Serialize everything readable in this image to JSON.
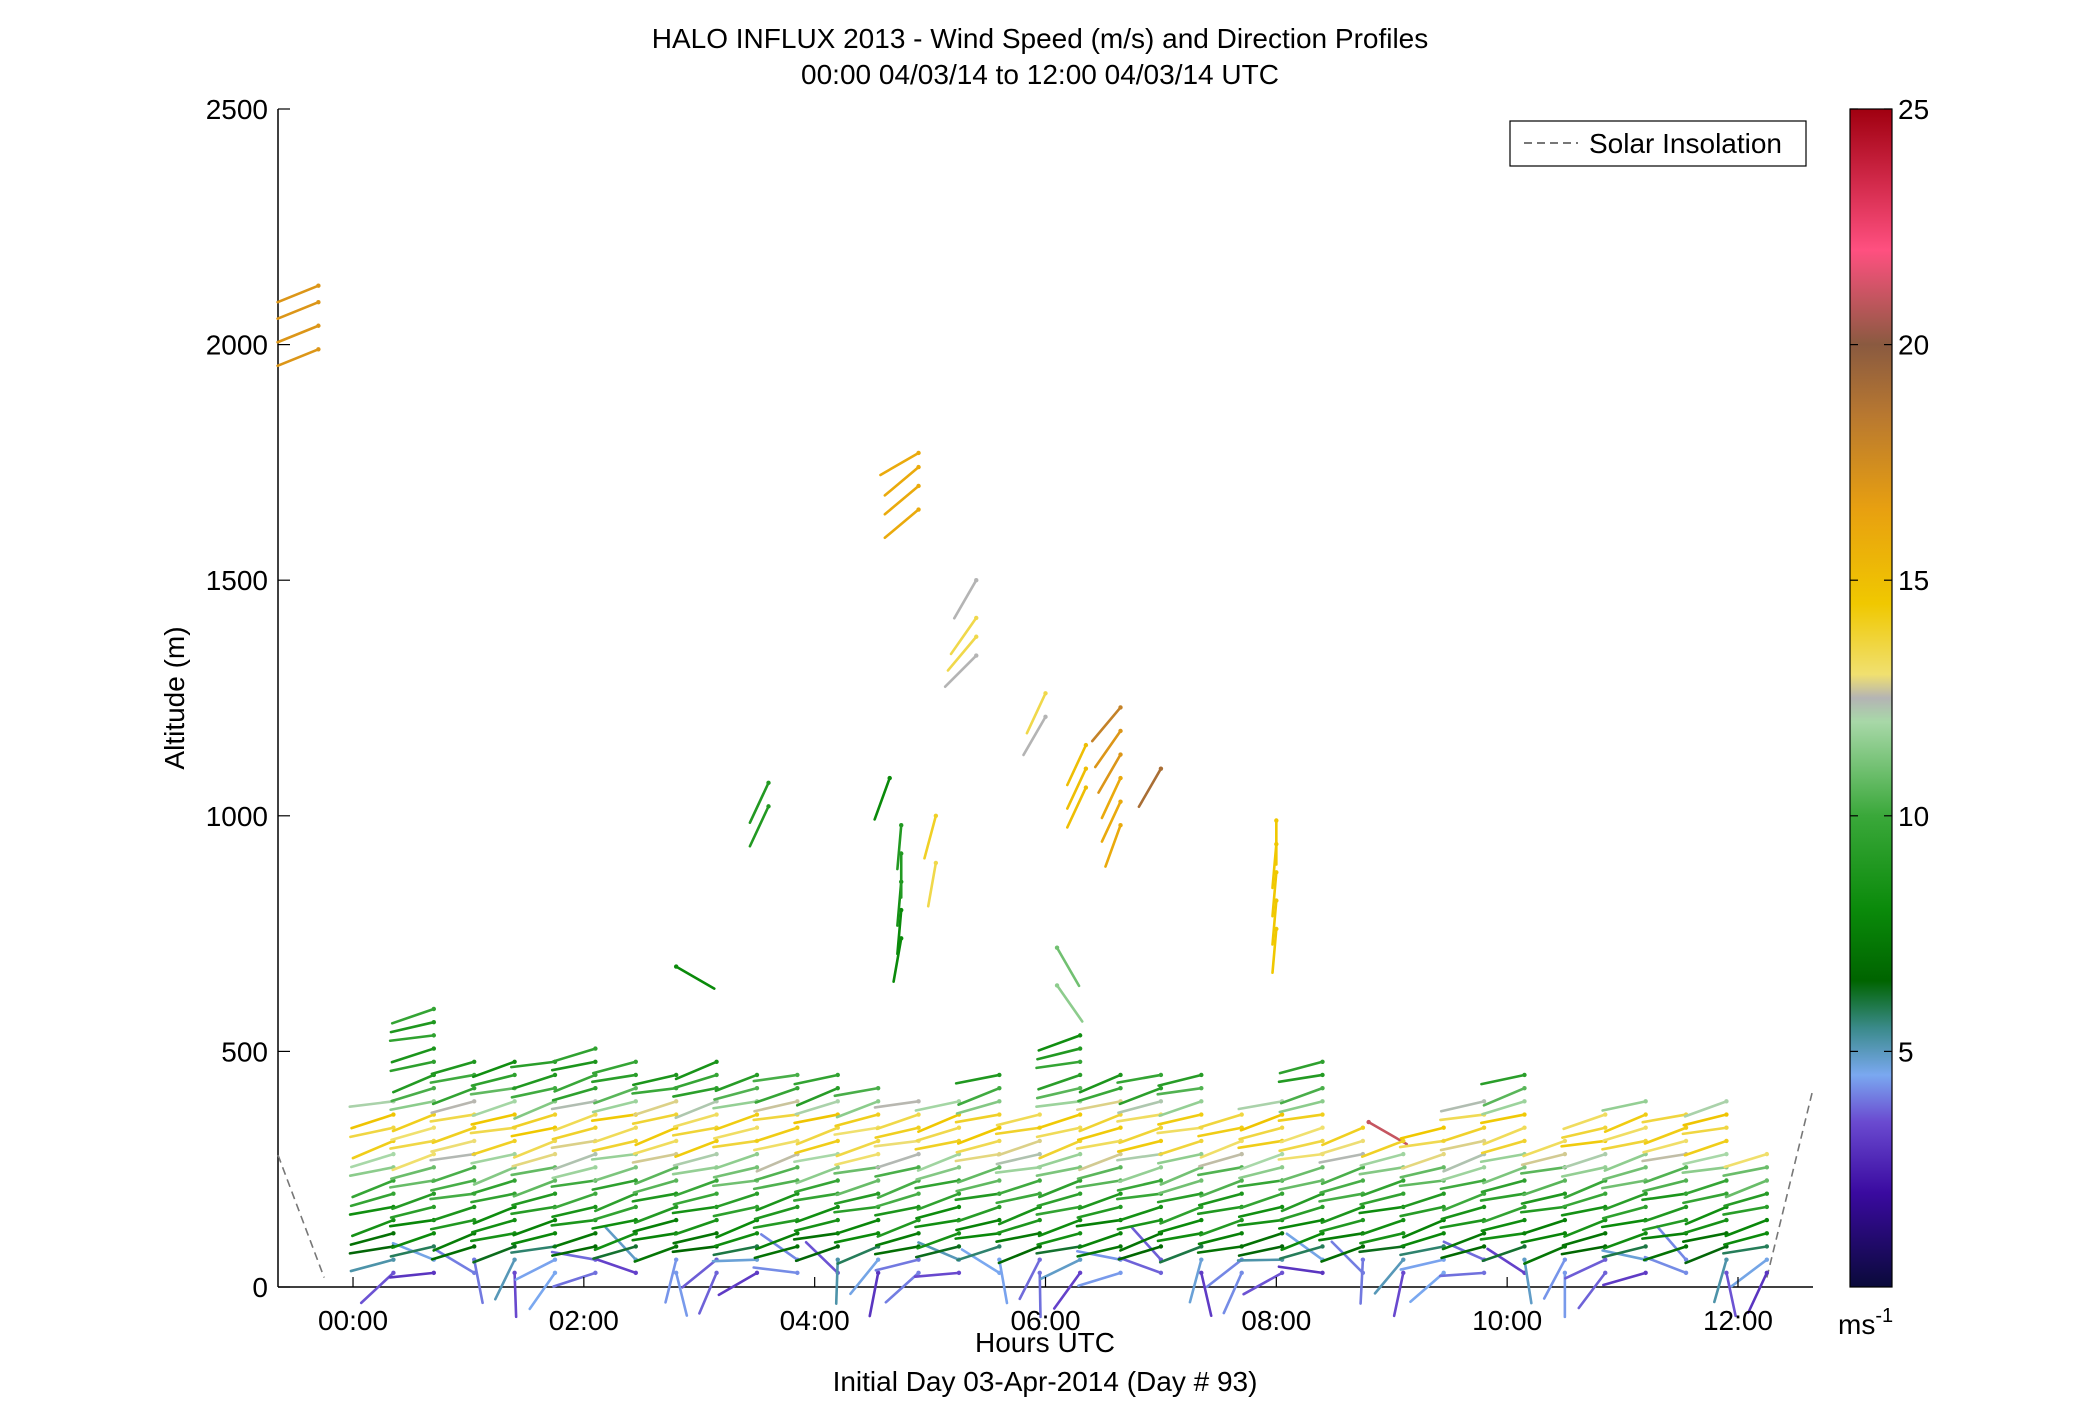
{
  "chart_data": {
    "type": "scatter",
    "title": "HALO INFLUX 2013 - Wind Speed (m/s) and Direction Profiles",
    "subtitle": "00:00 04/03/14 to 12:00 04/03/14  UTC",
    "xlabel": "Hours UTC",
    "xlabel2": "Initial Day 03-Apr-2014 (Day # 93)",
    "ylabel": "Altitude (m)",
    "xlim": [
      -0.65,
      12.65
    ],
    "ylim": [
      0,
      2500
    ],
    "x_ticks": [
      0,
      2,
      4,
      6,
      8,
      10,
      12
    ],
    "x_tick_labels": [
      "00:00",
      "02:00",
      "04:00",
      "06:00",
      "08:00",
      "10:00",
      "12:00"
    ],
    "y_ticks": [
      0,
      500,
      1000,
      1500,
      2000,
      2500
    ],
    "y_tick_labels": [
      "0",
      "500",
      "1000",
      "1500",
      "2000",
      "2500"
    ],
    "legend": {
      "entries": [
        "Solar Insolation"
      ],
      "placement": "top-right"
    },
    "colorbar": {
      "min": 0,
      "max": 25,
      "ticks": [
        5,
        10,
        15,
        20,
        25
      ],
      "tick_labels": [
        "5",
        "10",
        "15",
        "20",
        "25"
      ],
      "unit_label": "ms",
      "unit_sup": "-1",
      "stops": [
        [
          0,
          "#0a0a3a"
        ],
        [
          2,
          "#3a0aa0"
        ],
        [
          3.5,
          "#6a4ad0"
        ],
        [
          4.5,
          "#7aa8f0"
        ],
        [
          5.5,
          "#3a8a8a"
        ],
        [
          6.5,
          "#006400"
        ],
        [
          8,
          "#0a8a0a"
        ],
        [
          10,
          "#3aa83a"
        ],
        [
          12,
          "#a8d8a8"
        ],
        [
          12.5,
          "#b4b4b4"
        ],
        [
          13,
          "#f0e070"
        ],
        [
          14.5,
          "#f0c800"
        ],
        [
          16.5,
          "#e8a010"
        ],
        [
          18.5,
          "#b87830"
        ],
        [
          20,
          "#8a5a40"
        ],
        [
          22,
          "#ff5080"
        ],
        [
          25,
          "#a00010"
        ]
      ]
    },
    "solar_insolation": {
      "segments": [
        [
          [
            -0.65,
            280
          ],
          [
            -0.25,
            20
          ]
        ],
        [
          [
            12.25,
            20
          ],
          [
            12.65,
            420
          ]
        ]
      ]
    },
    "wind_barbs": {
      "description_fields": [
        "hour",
        "altitude_m",
        "speed_ms",
        "direction_deg"
      ],
      "points": [
        [
          -0.3,
          1990,
          17,
          248
        ],
        [
          -0.3,
          2040,
          17,
          248
        ],
        [
          -0.3,
          2090,
          17,
          248
        ],
        [
          -0.3,
          2125,
          17,
          248
        ],
        [
          4.9,
          1650,
          16,
          230
        ],
        [
          4.9,
          1700,
          16,
          230
        ],
        [
          4.9,
          1740,
          16,
          230
        ],
        [
          4.9,
          1770,
          16,
          240
        ],
        [
          5.4,
          1340,
          12.5,
          225
        ],
        [
          5.4,
          1380,
          13.5,
          220
        ],
        [
          5.4,
          1420,
          13.5,
          215
        ],
        [
          5.4,
          1500,
          12.5,
          210
        ],
        [
          6.0,
          1210,
          12.5,
          210
        ],
        [
          6.0,
          1260,
          13.5,
          205
        ],
        [
          6.35,
          1060,
          15,
          205
        ],
        [
          6.35,
          1100,
          15,
          205
        ],
        [
          6.35,
          1150,
          15,
          205
        ],
        [
          6.65,
          980,
          16,
          200
        ],
        [
          6.65,
          1030,
          16,
          205
        ],
        [
          6.65,
          1080,
          16,
          205
        ],
        [
          6.65,
          1130,
          17,
          210
        ],
        [
          6.65,
          1180,
          17,
          215
        ],
        [
          6.65,
          1230,
          18,
          220
        ],
        [
          7.0,
          1100,
          19,
          210
        ],
        [
          3.6,
          1020,
          9,
          205
        ],
        [
          3.6,
          1070,
          9,
          205
        ],
        [
          4.65,
          1080,
          8,
          200
        ],
        [
          4.75,
          740,
          8,
          190
        ],
        [
          4.75,
          800,
          8,
          185
        ],
        [
          4.75,
          860,
          8.5,
          185
        ],
        [
          4.75,
          920,
          9,
          180
        ],
        [
          4.75,
          980,
          9,
          185
        ],
        [
          5.05,
          900,
          13.5,
          190
        ],
        [
          5.05,
          1000,
          14,
          195
        ],
        [
          2.8,
          680,
          8,
          120
        ],
        [
          8.0,
          760,
          14.5,
          185
        ],
        [
          8.0,
          820,
          14.5,
          185
        ],
        [
          8.0,
          880,
          14.5,
          185
        ],
        [
          8.0,
          940,
          14.5,
          185
        ],
        [
          8.0,
          990,
          14.5,
          180
        ],
        [
          6.1,
          720,
          11,
          150
        ],
        [
          6.1,
          640,
          11.5,
          145
        ],
        [
          8.8,
          350,
          21,
          120
        ]
      ]
    },
    "wind_field": {
      "description": "Dense lower-atmosphere barb field",
      "hours": [
        0.1,
        0.35,
        0.7,
        1.05,
        1.4,
        1.75,
        2.1,
        2.45,
        2.8,
        3.15,
        3.5,
        3.85,
        4.2,
        4.55,
        4.9,
        5.25,
        5.6,
        5.95,
        6.3,
        6.65,
        7.0,
        7.35,
        7.7,
        8.05,
        8.4,
        8.75,
        9.1,
        9.45,
        9.8,
        10.15,
        10.5,
        10.85,
        11.2,
        11.55,
        11.9,
        12.25
      ],
      "tops_m": [
        0,
        400,
        590,
        480,
        490,
        490,
        520,
        500,
        470,
        490,
        460,
        470,
        470,
        430,
        410,
        400,
        460,
        380,
        560,
        450,
        470,
        460,
        380,
        420,
        490,
        340,
        330,
        340,
        420,
        460,
        330,
        370,
        410,
        390,
        400,
        300
      ],
      "level_step_m": 28,
      "speed_by_altitude": [
        [
          0,
          3
        ],
        [
          60,
          4.5
        ],
        [
          100,
          7.5
        ],
        [
          200,
          9.5
        ],
        [
          270,
          11.5
        ],
        [
          300,
          13.5
        ],
        [
          370,
          14
        ],
        [
          420,
          10
        ],
        [
          480,
          9
        ]
      ],
      "direction_deg": 255
    }
  }
}
